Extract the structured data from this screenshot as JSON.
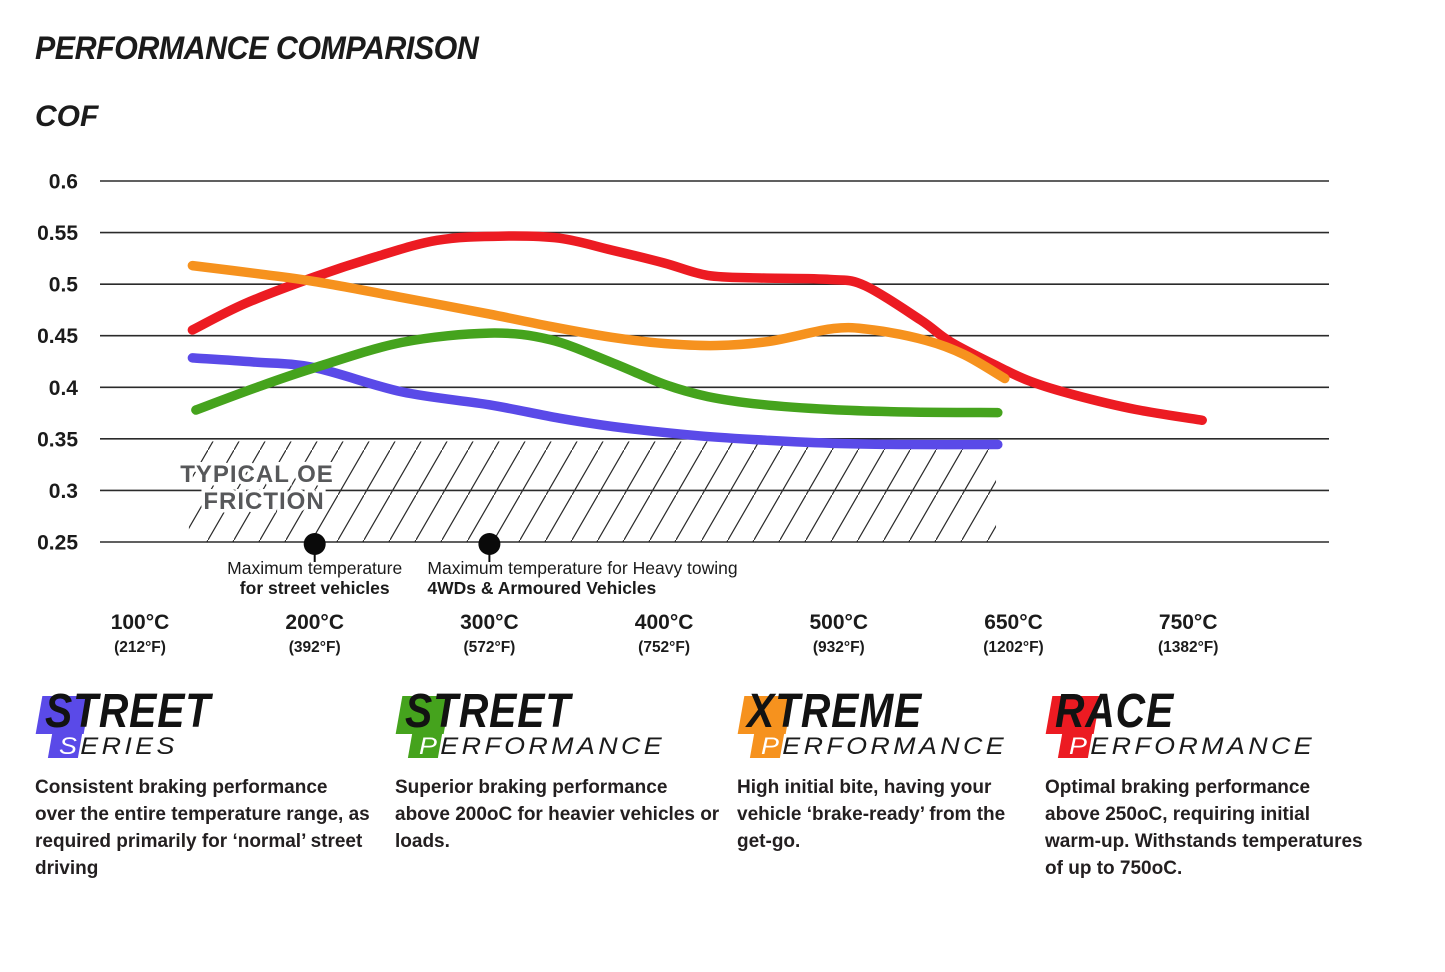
{
  "header": {
    "title": "PERFORMANCE COMPARISON",
    "y_axis_label": "COF"
  },
  "chart_data": {
    "type": "line",
    "title": "PERFORMANCE COMPARISON",
    "ylabel": "COF",
    "ylim": [
      0.25,
      0.6
    ],
    "grid": "horizontal",
    "legend_position": "bottom",
    "x_scale": "tick-index (0..6 maps to the seven temperature ticks)",
    "y_ticks": [
      "0.6",
      "0.55",
      "0.5",
      "0.45",
      "0.4",
      "0.35",
      "0.3",
      "0.25"
    ],
    "x_ticks": [
      {
        "c": "100°C",
        "f": "(212°F)"
      },
      {
        "c": "200°C",
        "f": "(392°F)"
      },
      {
        "c": "300°C",
        "f": "(572°F)"
      },
      {
        "c": "400°C",
        "f": "(752°F)"
      },
      {
        "c": "500°C",
        "f": "(932°F)"
      },
      {
        "c": "650°C",
        "f": "(1202°F)"
      },
      {
        "c": "750°C",
        "f": "(1382°F)"
      }
    ],
    "series": [
      {
        "name": "Race Performance",
        "color": "#ec1b22",
        "points": [
          [
            0.3,
            0.4555
          ],
          [
            0.6,
            0.481
          ],
          [
            1.0,
            0.507
          ],
          [
            1.35,
            0.5265
          ],
          [
            1.7,
            0.5425
          ],
          [
            2.05,
            0.5465
          ],
          [
            2.4,
            0.5445
          ],
          [
            2.7,
            0.533
          ],
          [
            3.0,
            0.5205
          ],
          [
            3.25,
            0.5085
          ],
          [
            3.55,
            0.506
          ],
          [
            3.95,
            0.5045
          ],
          [
            4.15,
            0.4985
          ],
          [
            4.47,
            0.465
          ],
          [
            4.64,
            0.444
          ],
          [
            4.92,
            0.4195
          ],
          [
            5.1,
            0.4055
          ],
          [
            5.35,
            0.3925
          ],
          [
            5.7,
            0.3785
          ],
          [
            6.08,
            0.368
          ]
        ]
      },
      {
        "name": "Xtreme Performance",
        "color": "#f6921e",
        "points": [
          [
            0.3,
            0.518
          ],
          [
            0.7,
            0.5095
          ],
          [
            1.0,
            0.5025
          ],
          [
            1.5,
            0.487
          ],
          [
            2.0,
            0.471
          ],
          [
            2.35,
            0.459
          ],
          [
            2.7,
            0.4485
          ],
          [
            3.0,
            0.4425
          ],
          [
            3.3,
            0.4405
          ],
          [
            3.6,
            0.4445
          ],
          [
            3.97,
            0.457
          ],
          [
            4.2,
            0.4555
          ],
          [
            4.5,
            0.4455
          ],
          [
            4.72,
            0.4315
          ],
          [
            4.95,
            0.4085
          ]
        ]
      },
      {
        "name": "Street Series",
        "color": "#5a4ae8",
        "points": [
          [
            0.3,
            0.4285
          ],
          [
            0.65,
            0.4245
          ],
          [
            1.0,
            0.419
          ],
          [
            1.5,
            0.3955
          ],
          [
            2.0,
            0.383
          ],
          [
            2.4,
            0.37
          ],
          [
            2.75,
            0.361
          ],
          [
            3.2,
            0.353
          ],
          [
            3.6,
            0.3485
          ],
          [
            4.0,
            0.3455
          ],
          [
            4.4,
            0.3445
          ],
          [
            4.91,
            0.3445
          ]
        ]
      },
      {
        "name": "Street Performance",
        "color": "#45a31d",
        "points": [
          [
            0.32,
            0.378
          ],
          [
            0.67,
            0.4
          ],
          [
            1.0,
            0.419
          ],
          [
            1.5,
            0.4435
          ],
          [
            2.0,
            0.4525
          ],
          [
            2.35,
            0.446
          ],
          [
            2.7,
            0.424
          ],
          [
            3.0,
            0.403
          ],
          [
            3.25,
            0.391
          ],
          [
            3.55,
            0.3835
          ],
          [
            3.95,
            0.3785
          ],
          [
            4.4,
            0.376
          ],
          [
            4.91,
            0.3755
          ]
        ]
      }
    ],
    "annotations": {
      "oe_band": {
        "label_line1": "TYPICAL OE",
        "label_line2": "FRICTION",
        "from_u": 0.28,
        "to_u": 4.9,
        "from_cof": 0.25,
        "to_cof": 0.3475,
        "label_color": "#57585a"
      },
      "markers": [
        {
          "u": 1.0,
          "cof": 0.25,
          "align": "center",
          "line1": "Maximum temperature",
          "line2": "for street vehicles"
        },
        {
          "u": 2.0,
          "cof": 0.25,
          "align": "left",
          "line1": "Maximum temperature for Heavy towing",
          "line2": "4WDs & Armoured Vehicles"
        }
      ]
    }
  },
  "legends": [
    {
      "word1": "STREET",
      "word2_first": "S",
      "word2_rest": "ERIES",
      "color": "#5a4ae8",
      "description": "Consistent braking performance over the entire temperature range, as required primarily for ‘normal’ street driving"
    },
    {
      "word1": "STREET",
      "word2_first": "P",
      "word2_rest": "ERFORMANCE",
      "color": "#45a31d",
      "description": "Superior braking performance above 200oC for heavier vehicles or loads."
    },
    {
      "word1": "XTREME",
      "word2_first": "P",
      "word2_rest": "ERFORMANCE",
      "color": "#f6921e",
      "description": "High initial bite, having your vehicle ‘brake-ready’ from the get-go."
    },
    {
      "word1": "RACE",
      "word2_first": "P",
      "word2_rest": "ERFORMANCE",
      "color": "#ec1b22",
      "description": "Optimal braking performance above 250oC, requiring initial warm-up. Withstands temperatures of up to 750oC."
    }
  ]
}
